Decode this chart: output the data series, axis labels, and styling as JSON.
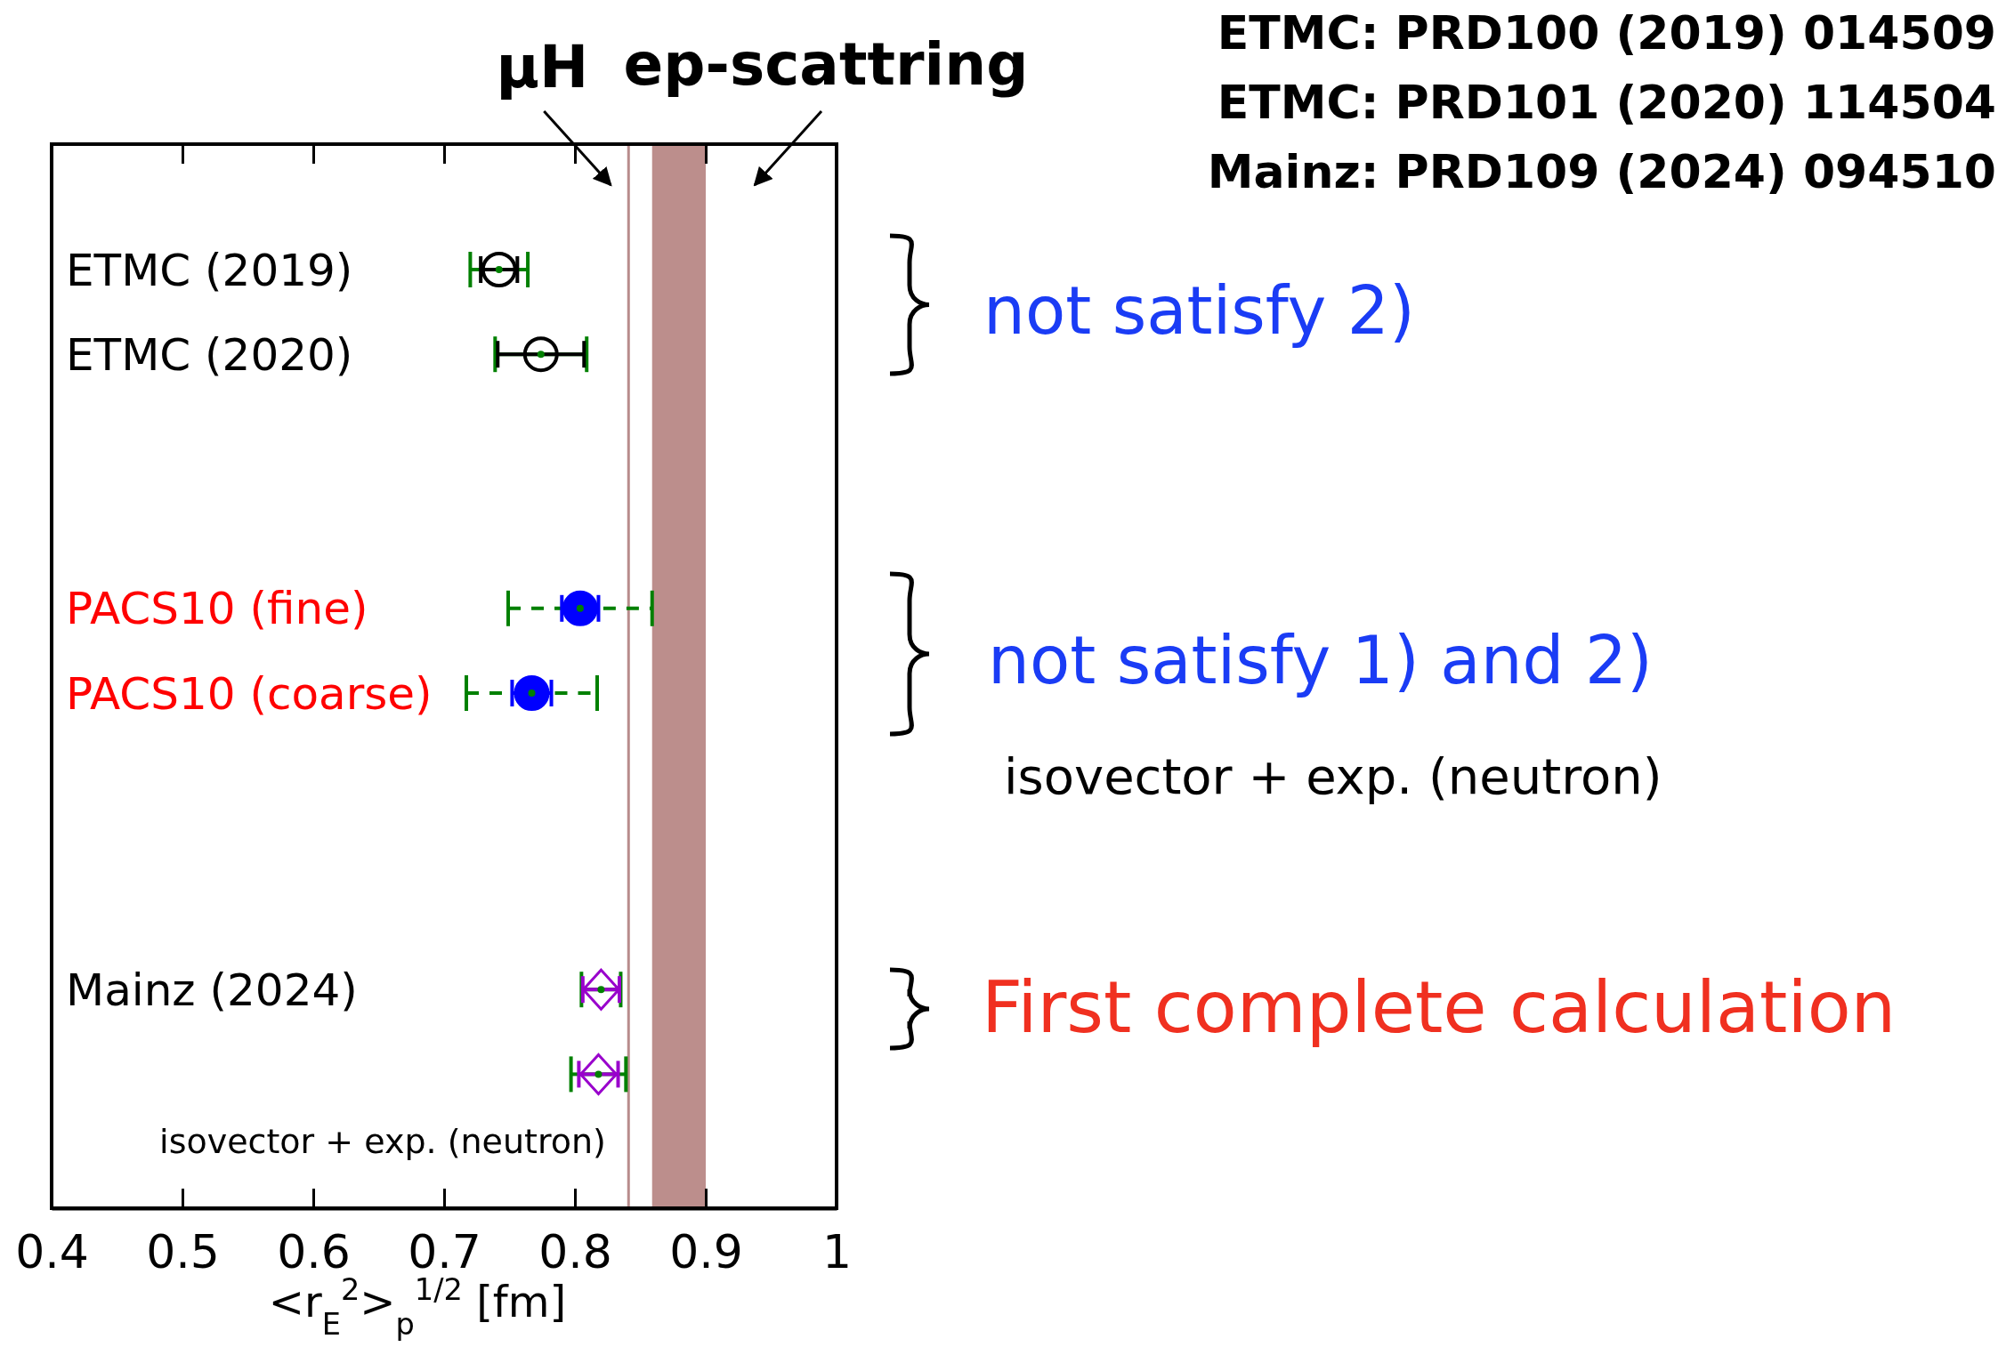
{
  "chart_data": {
    "type": "scatter",
    "orientation": "horizontal",
    "categories": [
      "ETMC (2019)",
      null,
      "ETMC (2020)",
      null,
      null,
      null,
      null,
      null,
      "PACS10 (fine)",
      null,
      "PACS10 (coarse)",
      null,
      null,
      null,
      null,
      null,
      null,
      "Mainz (2024)",
      null,
      null,
      null,
      null
    ],
    "xlabel": "<r$_{E}$$^{2}$>$_{p}$$^{1/2}$ [fm]",
    "xlim": [
      0.4,
      1
    ],
    "xticks": [
      0.4,
      0.5,
      0.6,
      0.7,
      0.8,
      0.9,
      1
    ],
    "series": [
      {
        "color": "#008000",
        "marker": "circle",
        "values": [
          0.742,
          null,
          0.774,
          null,
          null,
          null,
          null,
          null,
          null,
          null,
          null,
          null,
          null,
          null,
          null,
          null,
          null,
          null,
          null,
          null,
          null,
          null
        ],
        "errors": [
          0.022,
          null,
          0.035,
          null,
          null,
          null,
          null,
          null,
          null,
          null,
          null,
          null,
          null,
          null,
          null,
          null,
          null,
          null,
          null,
          null,
          null,
          null
        ]
      },
      {
        "color": "#000000",
        "marker": "circle",
        "values": [
          0.742,
          null,
          0.774,
          null,
          null,
          null,
          null,
          null,
          null,
          null,
          null,
          null,
          null,
          null,
          null,
          null,
          null,
          null,
          null,
          null,
          null,
          null
        ],
        "errors": [
          0.014,
          null,
          0.033,
          null,
          null,
          null,
          null,
          null,
          null,
          null,
          null,
          null,
          null,
          null,
          null,
          null,
          null,
          null,
          null,
          null,
          null,
          null
        ]
      },
      {
        "color": "#008000",
        "marker": "circle",
        "line_style": "dashed",
        "values": [
          null,
          null,
          null,
          null,
          null,
          null,
          null,
          null,
          0.804,
          null,
          0.767,
          null,
          null,
          null,
          null,
          null,
          null,
          null,
          null,
          null,
          null,
          null
        ],
        "errors": [
          null,
          null,
          null,
          null,
          null,
          null,
          null,
          null,
          0.055,
          null,
          0.05,
          null,
          null,
          null,
          null,
          null,
          null,
          null,
          null,
          null,
          null,
          null
        ]
      },
      {
        "color": "#0000ff",
        "marker": "circle",
        "values": [
          null,
          null,
          null,
          null,
          null,
          null,
          null,
          null,
          0.804,
          null,
          0.767,
          null,
          null,
          null,
          null,
          null,
          null,
          null,
          null,
          null,
          null,
          null
        ],
        "errors": [
          null,
          null,
          null,
          null,
          null,
          null,
          null,
          null,
          0.014,
          null,
          0.015,
          null,
          null,
          null,
          null,
          null,
          null,
          null,
          null,
          null,
          null,
          null
        ]
      },
      {
        "color": "#008000",
        "marker": "circle",
        "values": [
          null,
          null,
          null,
          null,
          null,
          null,
          null,
          null,
          null,
          null,
          null,
          null,
          null,
          null,
          null,
          null,
          null,
          0.82,
          null,
          0.818,
          null,
          null
        ],
        "errors": [
          null,
          null,
          null,
          null,
          null,
          null,
          null,
          null,
          null,
          null,
          null,
          null,
          null,
          null,
          null,
          null,
          null,
          0.015,
          null,
          0.021,
          null,
          null
        ]
      },
      {
        "color": "#9900cc",
        "marker": "diamond",
        "values": [
          null,
          null,
          null,
          null,
          null,
          null,
          null,
          null,
          null,
          null,
          null,
          null,
          null,
          null,
          null,
          null,
          null,
          0.82,
          null,
          0.818,
          null,
          null
        ],
        "errors": [
          null,
          null,
          null,
          null,
          null,
          null,
          null,
          null,
          null,
          null,
          null,
          null,
          null,
          null,
          null,
          null,
          null,
          0.014,
          null,
          0.015,
          null,
          null
        ]
      }
    ],
    "ref_lines": [
      {
        "axis": "x",
        "value": 0.841,
        "label": "μH",
        "color": "#b88c8c"
      }
    ],
    "bands": [
      {
        "axis": "x",
        "from": 0.859,
        "to": 0.9,
        "label": "ep-scattring",
        "color": "#bc8e8c"
      }
    ],
    "annotations": [
      "ETMC: PRD100 (2019) 014509",
      "ETMC: PRD101 (2020) 114504",
      "Mainz: PRD109 (2024) 094510",
      "not satisfy 2)",
      "not satisfy 1) and 2)",
      "isovector + exp. (neutron)",
      "First complete calculation",
      "isovector + exp. (neutron)"
    ]
  }
}
